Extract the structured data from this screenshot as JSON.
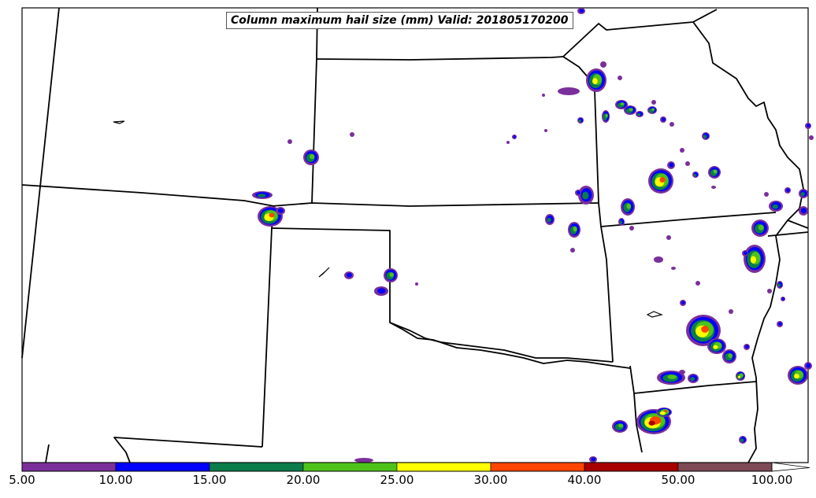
{
  "title": "Column maximum hail size (mm) Valid: 201805170200",
  "colorbar": {
    "ticks": [
      "5.00",
      "10.00",
      "15.00",
      "20.00",
      "25.00",
      "30.00",
      "40.00",
      "50.00",
      "100.00"
    ],
    "colors": [
      "#7a2f9a",
      "#0000ff",
      "#0a7d4a",
      "#4fc21a",
      "#ffff00",
      "#ff4500",
      "#a80000",
      "#7d4a55"
    ],
    "extend": "max"
  },
  "legend_colors": {
    "level_5_10": "#7a2f9a",
    "level_10_15": "#0000ff",
    "level_15_20": "#0a7d4a",
    "level_20_25": "#4fc21a",
    "level_25_30": "#ffff00",
    "level_30_40": "#ff4500",
    "level_40_50": "#a80000",
    "level_50_100": "#7d4a55"
  }
}
